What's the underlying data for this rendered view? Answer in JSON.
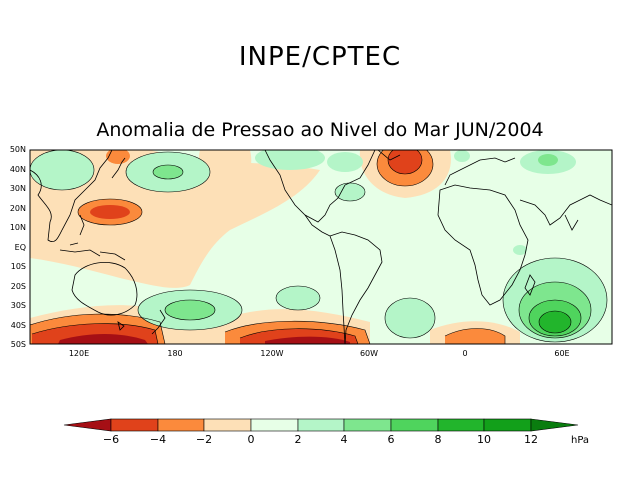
{
  "header": {
    "title": "INPE/CPTEC"
  },
  "map": {
    "title": "Anomalia de Pressao ao Nivel do Mar JUN/2004",
    "lat_labels": [
      "50N",
      "40N",
      "30N",
      "20N",
      "10N",
      "EQ",
      "10S",
      "20S",
      "30S",
      "40S",
      "50S"
    ],
    "lon_labels": [
      "120E",
      "180",
      "120W",
      "60W",
      "0",
      "60E"
    ],
    "colors": {
      "neg6": "#a50f15",
      "neg4": "#e0421b",
      "neg2": "#fb8a3c",
      "neg0": "#fde0b7",
      "pos0": "#e7ffe7",
      "pos2": "#b4f5c8",
      "pos4": "#7ee68e",
      "pos6": "#4fd45d",
      "pos8": "#22b52c",
      "pos10": "#12a01a",
      "pos12": "#0a7d0f",
      "land": "#000000"
    }
  },
  "colorbar": {
    "ticks": [
      "−6",
      "−4",
      "−2",
      "0",
      "2",
      "4",
      "6",
      "8",
      "10",
      "12"
    ],
    "units": "hPa"
  }
}
